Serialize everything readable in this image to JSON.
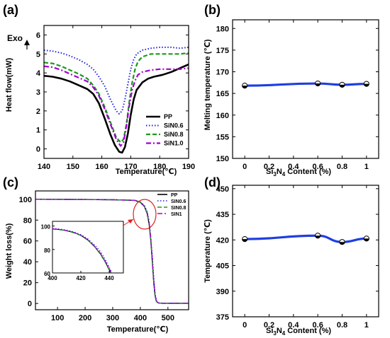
{
  "chart_data": [
    {
      "panel": "(a)",
      "type": "line",
      "xlabel": "Temperature(℃)",
      "ylabel": "Heat flow(mW)",
      "annotation": "Exo",
      "xlim": [
        140,
        190
      ],
      "ylim": [
        -0.5,
        6.5
      ],
      "xticks": [
        140,
        150,
        160,
        170,
        180,
        190
      ],
      "yticks": [
        0,
        1,
        2,
        3,
        4,
        5,
        6
      ],
      "legend_position": "bottom-right",
      "series": [
        {
          "name": "PP",
          "color": "#000000",
          "dash": "solid",
          "width": 2.6,
          "points": [
            [
              140,
              3.85
            ],
            [
              143,
              3.8
            ],
            [
              146,
              3.7
            ],
            [
              149,
              3.55
            ],
            [
              152,
              3.35
            ],
            [
              155,
              3.15
            ],
            [
              157,
              2.9
            ],
            [
              159,
              2.4
            ],
            [
              161,
              1.6
            ],
            [
              163,
              0.75
            ],
            [
              164.5,
              0.2
            ],
            [
              166,
              -0.15
            ],
            [
              167,
              -0.2
            ],
            [
              168,
              0.1
            ],
            [
              169,
              0.8
            ],
            [
              170,
              1.8
            ],
            [
              171,
              2.6
            ],
            [
              172,
              3.1
            ],
            [
              174,
              3.5
            ],
            [
              176,
              3.7
            ],
            [
              178,
              3.8
            ],
            [
              181,
              3.9
            ],
            [
              184,
              4.05
            ],
            [
              187,
              4.25
            ],
            [
              190,
              4.45
            ]
          ]
        },
        {
          "name": "SiN0.6",
          "color": "#1f1fe0",
          "dash": "dotted",
          "width": 2,
          "points": [
            [
              140,
              5.2
            ],
            [
              143,
              5.15
            ],
            [
              146,
              5.05
            ],
            [
              149,
              4.9
            ],
            [
              152,
              4.7
            ],
            [
              155,
              4.45
            ],
            [
              157,
              4.2
            ],
            [
              159,
              3.8
            ],
            [
              161,
              3.3
            ],
            [
              163,
              2.6
            ],
            [
              165,
              2.0
            ],
            [
              166,
              1.85
            ],
            [
              167,
              2.0
            ],
            [
              168,
              2.6
            ],
            [
              169,
              3.4
            ],
            [
              170,
              4.2
            ],
            [
              171,
              4.7
            ],
            [
              172,
              5.0
            ],
            [
              174,
              5.2
            ],
            [
              177,
              5.3
            ],
            [
              180,
              5.35
            ],
            [
              184,
              5.35
            ],
            [
              187,
              5.3
            ],
            [
              190,
              5.35
            ]
          ]
        },
        {
          "name": "SiN0.8",
          "color": "#1a9a1a",
          "dash": "dashed",
          "width": 2.2,
          "points": [
            [
              140,
              4.55
            ],
            [
              143,
              4.5
            ],
            [
              146,
              4.35
            ],
            [
              149,
              4.15
            ],
            [
              152,
              3.95
            ],
            [
              155,
              3.7
            ],
            [
              157,
              3.35
            ],
            [
              159,
              2.9
            ],
            [
              161,
              2.2
            ],
            [
              163,
              1.4
            ],
            [
              165,
              0.6
            ],
            [
              166.5,
              0.35
            ],
            [
              167.5,
              0.5
            ],
            [
              168.5,
              1.3
            ],
            [
              169.5,
              2.5
            ],
            [
              170.5,
              3.5
            ],
            [
              171.5,
              4.2
            ],
            [
              172.5,
              4.6
            ],
            [
              174,
              4.85
            ],
            [
              177,
              5.0
            ],
            [
              180,
              5.0
            ],
            [
              184,
              5.0
            ],
            [
              187,
              5.0
            ],
            [
              190,
              5.05
            ]
          ]
        },
        {
          "name": "SiN1.0",
          "color": "#a000d0",
          "dash": "dashdot",
          "width": 2.2,
          "points": [
            [
              140,
              4.35
            ],
            [
              143,
              4.3
            ],
            [
              146,
              4.15
            ],
            [
              149,
              3.95
            ],
            [
              152,
              3.75
            ],
            [
              155,
              3.55
            ],
            [
              157,
              3.25
            ],
            [
              159,
              2.8
            ],
            [
              161,
              2.1
            ],
            [
              163,
              1.3
            ],
            [
              165,
              0.5
            ],
            [
              166.5,
              0.15
            ],
            [
              167.5,
              0.35
            ],
            [
              168.5,
              1.2
            ],
            [
              169.5,
              2.3
            ],
            [
              170.5,
              3.1
            ],
            [
              171.5,
              3.6
            ],
            [
              172.5,
              3.9
            ],
            [
              174,
              4.05
            ],
            [
              177,
              4.15
            ],
            [
              180,
              4.2
            ],
            [
              184,
              4.2
            ],
            [
              187,
              4.2
            ],
            [
              190,
              4.25
            ]
          ]
        }
      ]
    },
    {
      "panel": "(b)",
      "type": "line",
      "xlabel": "Si3N4 Content (%)",
      "ylabel": "Melting temperature (℃)",
      "xlim": [
        -0.1,
        1.1
      ],
      "ylim": [
        150,
        182
      ],
      "xticks": [
        0,
        0.2,
        0.4,
        0.6,
        0.8,
        1
      ],
      "yticks": [
        150,
        155,
        160,
        165,
        170,
        175,
        180
      ],
      "series": [
        {
          "name": "",
          "color": "#1f3fe0",
          "x": [
            0,
            0.6,
            0.8,
            1
          ],
          "y": [
            166.8,
            167.3,
            167.0,
            167.2
          ]
        }
      ]
    },
    {
      "panel": "(c)",
      "type": "line",
      "xlabel": "Temperature(℃)",
      "ylabel": "Weight loss(%)",
      "xlim": [
        20,
        575
      ],
      "ylim": [
        -6,
        108
      ],
      "xticks": [
        100,
        200,
        300,
        400,
        500
      ],
      "yticks": [
        0,
        20,
        40,
        60,
        80,
        100
      ],
      "legend_position": "top-right",
      "series": [
        {
          "name": "PP",
          "color": "#000000",
          "dash": "solid",
          "points": [
            [
              20,
              100
            ],
            [
              200,
              99.8
            ],
            [
              300,
              99.5
            ],
            [
              380,
              99
            ],
            [
              400,
              97
            ],
            [
              415,
              93
            ],
            [
              425,
              86
            ],
            [
              432,
              76
            ],
            [
              438,
              60
            ],
            [
              443,
              42
            ],
            [
              448,
              22
            ],
            [
              453,
              8
            ],
            [
              458,
              2
            ],
            [
              465,
              0.5
            ],
            [
              480,
              0.2
            ],
            [
              575,
              0.2
            ]
          ]
        },
        {
          "name": "SIN0.6",
          "color": "#1f1fe0",
          "dash": "dotted",
          "points": [
            [
              20,
              100
            ],
            [
              200,
              99.8
            ],
            [
              300,
              99.5
            ],
            [
              380,
              99
            ],
            [
              400,
              97.5
            ],
            [
              415,
              94
            ],
            [
              425,
              88
            ],
            [
              432,
              79
            ],
            [
              438,
              63
            ],
            [
              444,
              44
            ],
            [
              449,
              24
            ],
            [
              454,
              9
            ],
            [
              459,
              2.5
            ],
            [
              466,
              0.6
            ],
            [
              480,
              0.3
            ],
            [
              575,
              0.3
            ]
          ]
        },
        {
          "name": "SIN0.8",
          "color": "#1a9a1a",
          "dash": "dashed",
          "points": [
            [
              20,
              100
            ],
            [
              200,
              99.8
            ],
            [
              300,
              99.5
            ],
            [
              380,
              99
            ],
            [
              400,
              97
            ],
            [
              415,
              93
            ],
            [
              425,
              86.5
            ],
            [
              432,
              77
            ],
            [
              438,
              61
            ],
            [
              443,
              43
            ],
            [
              448,
              23
            ],
            [
              453,
              8.5
            ],
            [
              458,
              2
            ],
            [
              465,
              0.5
            ],
            [
              480,
              0.2
            ],
            [
              575,
              0.2
            ]
          ]
        },
        {
          "name": "SIN1",
          "color": "#a000d0",
          "dash": "dashdot",
          "points": [
            [
              20,
              100
            ],
            [
              200,
              99.8
            ],
            [
              300,
              99.5
            ],
            [
              380,
              99
            ],
            [
              400,
              97.2
            ],
            [
              415,
              93.5
            ],
            [
              425,
              87
            ],
            [
              432,
              78
            ],
            [
              438,
              62
            ],
            [
              443,
              43.5
            ],
            [
              448,
              23.5
            ],
            [
              453,
              9
            ],
            [
              458,
              2.2
            ],
            [
              465,
              0.5
            ],
            [
              480,
              0.2
            ],
            [
              575,
              0.2
            ]
          ]
        }
      ],
      "inset": {
        "xlim": [
          400,
          450
        ],
        "ylim": [
          60,
          104
        ],
        "xticks": [
          400,
          420,
          440
        ],
        "yticks": [
          60,
          80,
          100
        ],
        "series": [
          {
            "color": "#000000",
            "dash": "solid",
            "points": [
              [
                400,
                97.5
              ],
              [
                405,
                97
              ],
              [
                410,
                96
              ],
              [
                415,
                94.5
              ],
              [
                420,
                92
              ],
              [
                425,
                88
              ],
              [
                430,
                82
              ],
              [
                434,
                76
              ],
              [
                437,
                70
              ],
              [
                439.5,
                64
              ],
              [
                441,
                60
              ]
            ]
          },
          {
            "color": "#1f1fe0",
            "dash": "dotted",
            "points": [
              [
                400,
                98
              ],
              [
                405,
                97.5
              ],
              [
                410,
                96.5
              ],
              [
                415,
                95
              ],
              [
                420,
                92.7
              ],
              [
                425,
                89
              ],
              [
                430,
                83.5
              ],
              [
                434,
                78
              ],
              [
                437,
                72
              ],
              [
                440,
                65
              ],
              [
                442,
                60
              ]
            ]
          },
          {
            "color": "#1a9a1a",
            "dash": "dashed",
            "points": [
              [
                400,
                97.3
              ],
              [
                405,
                96.8
              ],
              [
                410,
                95.8
              ],
              [
                415,
                94.2
              ],
              [
                420,
                91.8
              ],
              [
                425,
                87.8
              ],
              [
                430,
                81.8
              ],
              [
                434,
                75.5
              ],
              [
                437,
                69.5
              ],
              [
                439.5,
                63.5
              ],
              [
                441,
                60
              ]
            ]
          },
          {
            "color": "#a000d0",
            "dash": "dashdot",
            "points": [
              [
                400,
                97.6
              ],
              [
                405,
                97.1
              ],
              [
                410,
                96.1
              ],
              [
                415,
                94.6
              ],
              [
                420,
                92.2
              ],
              [
                425,
                88.3
              ],
              [
                430,
                82.5
              ],
              [
                434,
                76.5
              ],
              [
                437,
                70.5
              ],
              [
                440,
                64
              ],
              [
                441.5,
                60
              ]
            ]
          }
        ]
      }
    },
    {
      "panel": "(d)",
      "type": "line",
      "xlabel": "Si3N4 Content (%)",
      "ylabel": "Temperature (℃)",
      "xlim": [
        -0.1,
        1.1
      ],
      "ylim": [
        375,
        452
      ],
      "xticks": [
        0,
        0.2,
        0.4,
        0.6,
        0.8,
        1
      ],
      "yticks": [
        375,
        390,
        405,
        420,
        435,
        450
      ],
      "series": [
        {
          "name": "",
          "color": "#1f3fe0",
          "x": [
            0,
            0.6,
            0.8,
            1
          ],
          "y": [
            420.5,
            422.5,
            418.8,
            420.8
          ]
        }
      ]
    }
  ]
}
